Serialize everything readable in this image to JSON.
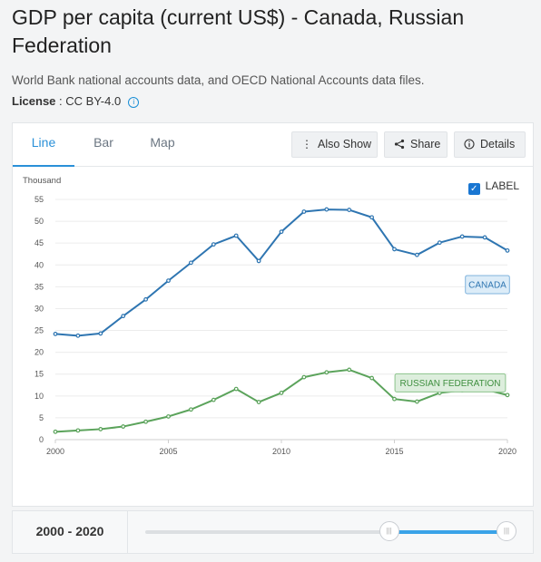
{
  "header": {
    "title": "GDP per capita (current US$) - Canada, Russian Federation",
    "source": "World Bank national accounts data, and OECD National Accounts data files.",
    "license_label": "License",
    "license_value": " : CC BY-4.0"
  },
  "tabs": [
    "Line",
    "Bar",
    "Map"
  ],
  "toolbar": {
    "also_show": "Also Show",
    "share": "Share",
    "details": "Details"
  },
  "label_toggle": "LABEL",
  "range": {
    "start": "2000",
    "sep": " - ",
    "end": "2020",
    "selected_fraction": [
      0.675,
      1.0
    ]
  },
  "colors": {
    "canada": "#2e75b1",
    "russia": "#5ba35b",
    "accent": "#2a90d8"
  },
  "chart_data": {
    "type": "line",
    "ylabel": "Thousand",
    "ylim": [
      0,
      55
    ],
    "yticks": [
      0,
      5,
      10,
      15,
      20,
      25,
      30,
      35,
      40,
      45,
      50,
      55
    ],
    "xticks": [
      2000,
      2005,
      2010,
      2015,
      2020
    ],
    "x": [
      2000,
      2001,
      2002,
      2003,
      2004,
      2005,
      2006,
      2007,
      2008,
      2009,
      2010,
      2011,
      2012,
      2013,
      2014,
      2015,
      2016,
      2017,
      2018,
      2019,
      2020
    ],
    "grid": true,
    "series": [
      {
        "name": "CANADA",
        "values": [
          24.2,
          23.8,
          24.3,
          28.3,
          32.1,
          36.4,
          40.5,
          44.7,
          46.7,
          40.9,
          47.6,
          52.2,
          52.7,
          52.6,
          50.9,
          43.6,
          42.3,
          45.1,
          46.5,
          46.3,
          43.3
        ]
      },
      {
        "name": "RUSSIAN FEDERATION",
        "values": [
          1.8,
          2.1,
          2.4,
          3.0,
          4.1,
          5.3,
          6.9,
          9.1,
          11.6,
          8.6,
          10.7,
          14.3,
          15.4,
          16.0,
          14.1,
          9.3,
          8.7,
          10.7,
          11.3,
          11.5,
          10.2
        ]
      }
    ]
  }
}
